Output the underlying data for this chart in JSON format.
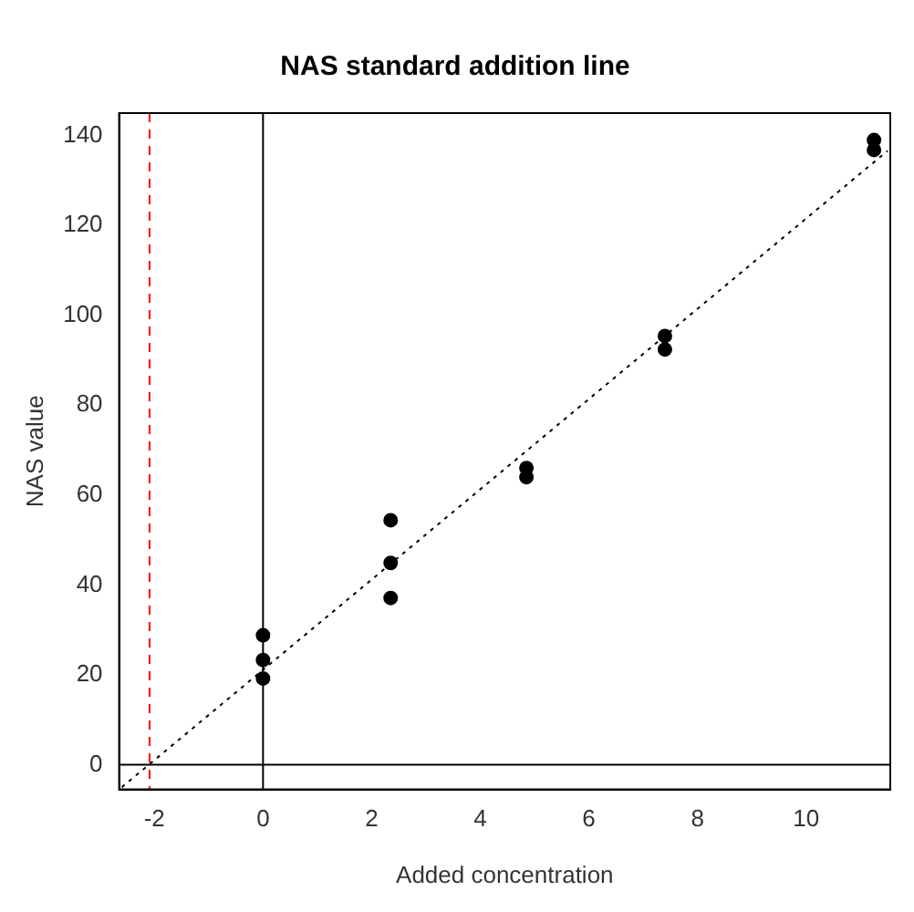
{
  "chart_data": {
    "type": "scatter",
    "title": "NAS standard addition line",
    "xlabel": "Added concentration",
    "ylabel": "NAS value",
    "xlim": [
      -2.65,
      11.55
    ],
    "ylim": [
      -5.5,
      145
    ],
    "xticks": [
      -2,
      0,
      2,
      4,
      6,
      8,
      10
    ],
    "yticks": [
      0,
      20,
      40,
      60,
      80,
      100,
      120,
      140
    ],
    "grid": false,
    "legend": false,
    "marker": "circle",
    "series": [
      {
        "type": "scatter",
        "color": "#000000",
        "x": [
          0,
          0,
          0,
          2.35,
          2.35,
          2.35,
          4.85,
          4.85,
          7.4,
          7.4,
          11.25,
          11.25
        ],
        "values": [
          28.8,
          23.3,
          19.2,
          54.4,
          44.9,
          37.1,
          66,
          64,
          95.4,
          92.4,
          139,
          136.8
        ]
      },
      {
        "type": "line",
        "color": "#000000",
        "line_style": "dotted",
        "marker": "none",
        "x": [
          -2.6,
          11.5
        ],
        "values": [
          -5,
          136.6
        ]
      }
    ],
    "ref_lines": [
      {
        "axis": "x",
        "value": -2.09,
        "color": "#ff0000",
        "line_style": "dashed"
      },
      {
        "axis": "x",
        "value": 0,
        "color": "#000000",
        "line_style": "solid"
      },
      {
        "axis": "y",
        "value": 0,
        "color": "#000000",
        "line_style": "solid"
      }
    ]
  }
}
